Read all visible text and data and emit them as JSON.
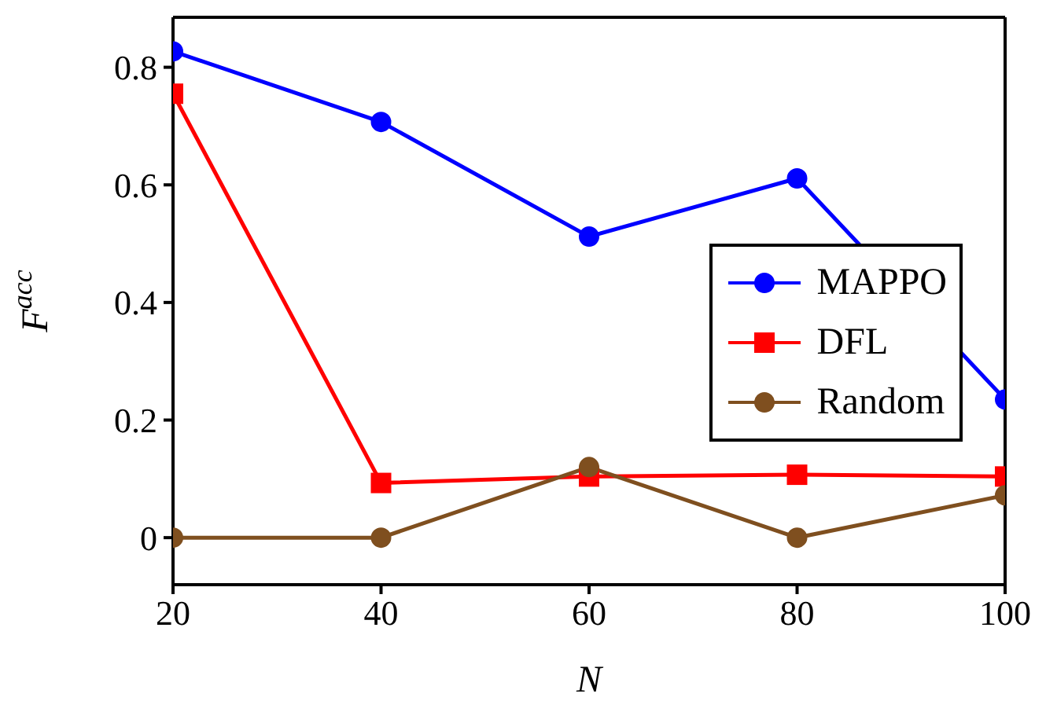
{
  "chart_data": {
    "type": "line",
    "xlabel": "N",
    "ylabel": "F$^{acc}$",
    "x": [
      20,
      40,
      60,
      80,
      100
    ],
    "series": [
      {
        "name": "MAPPO",
        "color": "#0000ff",
        "marker": "circle",
        "values": [
          0.827,
          0.707,
          0.512,
          0.611,
          0.235
        ]
      },
      {
        "name": "DFL",
        "color": "#ff0000",
        "marker": "square",
        "values": [
          0.755,
          0.093,
          0.104,
          0.107,
          0.104
        ]
      },
      {
        "name": "Random",
        "color": "#7f4f1f",
        "marker": "circle",
        "values": [
          0,
          0,
          0.12,
          0,
          0.072
        ]
      }
    ],
    "xlim": [
      20,
      100
    ],
    "xticks": [
      20,
      40,
      60,
      80,
      100
    ],
    "ylim": [
      -0.08,
      0.885
    ],
    "yticks": [
      0,
      0.2,
      0.4,
      0.6,
      0.8
    ],
    "grid": false,
    "legend": "right",
    "line_style": "solid"
  }
}
